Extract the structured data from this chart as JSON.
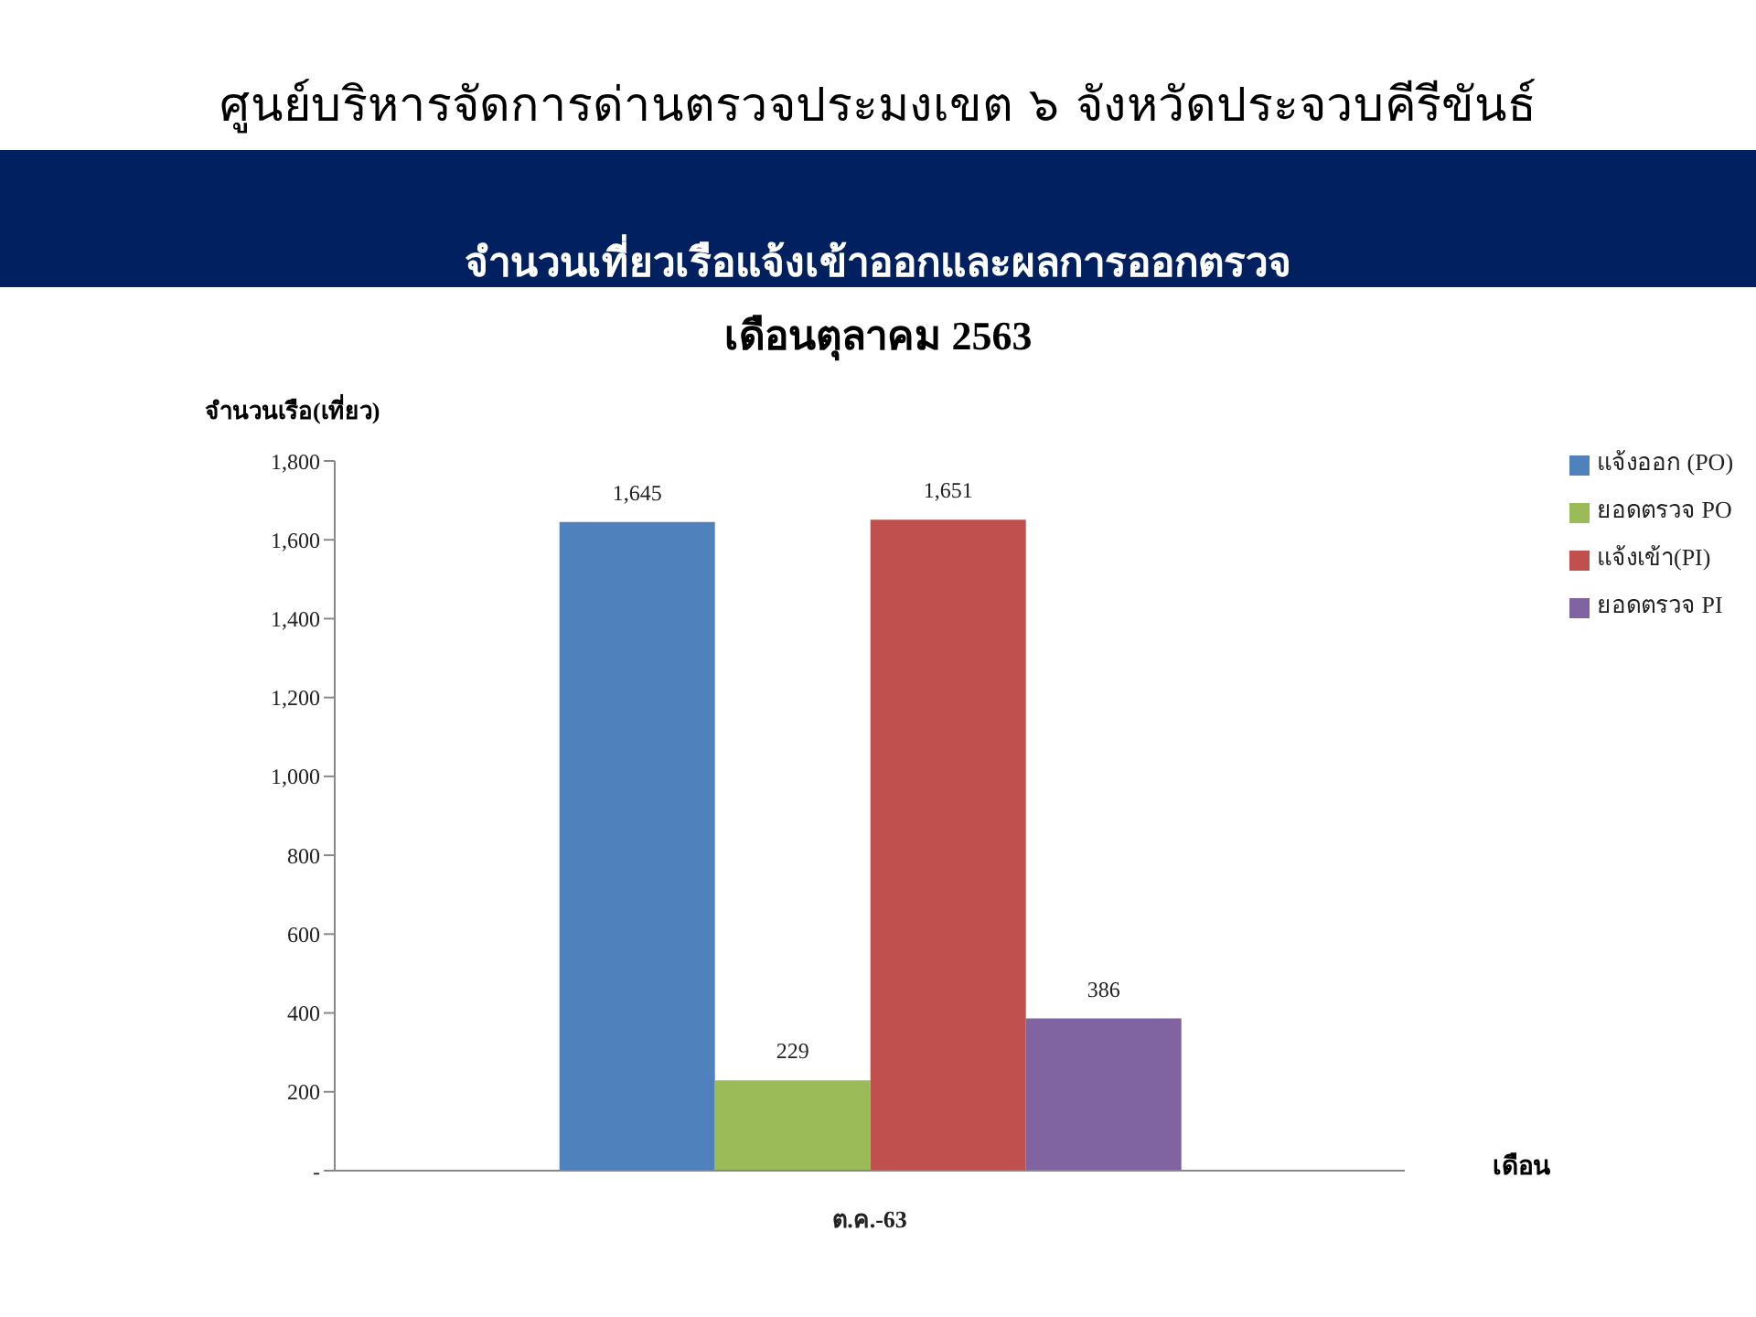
{
  "chart_data": {
    "type": "bar",
    "title": "ศูนย์บริหารจัดการด่านตรวจประมงเขต  ๖ จังหวัดประจวบคีรีขันธ์",
    "subtitle": "จำนวนเที่ยวเรือแจ้งเข้าออกและผลการออกตรวจ",
    "annotations": [
      "เดือนตุลาคม 2563"
    ],
    "ylabel": "จำนวนเรือ(เที่ยว)",
    "xlabel": "เดือน",
    "categories": [
      "ต.ค.-63"
    ],
    "series": [
      {
        "name": "แจ้งออก (PO)",
        "color": "#4f81bd",
        "values": [
          1645
        ],
        "value_labels": [
          "1,645"
        ]
      },
      {
        "name": "ยอดตรวจ PO",
        "color": "#9bbb59",
        "values": [
          229
        ],
        "value_labels": [
          "229"
        ]
      },
      {
        "name": "แจ้งเข้า(PI)",
        "color": "#c0504d",
        "values": [
          1651
        ],
        "value_labels": [
          "1,651"
        ]
      },
      {
        "name": "ยอดตรวจ PI",
        "color": "#8064a2",
        "values": [
          386
        ],
        "value_labels": [
          "386"
        ]
      }
    ],
    "ylim": [
      0,
      1800
    ],
    "yticks": [
      {
        "value": 0,
        "label": "-"
      },
      {
        "value": 200,
        "label": "200"
      },
      {
        "value": 400,
        "label": "400"
      },
      {
        "value": 600,
        "label": "600"
      },
      {
        "value": 800,
        "label": "800"
      },
      {
        "value": 1000,
        "label": "1,000"
      },
      {
        "value": 1200,
        "label": "1,200"
      },
      {
        "value": 1400,
        "label": "1,400"
      },
      {
        "value": 1600,
        "label": "1,600"
      },
      {
        "value": 1800,
        "label": "1,800"
      }
    ],
    "grid": false,
    "legend": "top right"
  }
}
